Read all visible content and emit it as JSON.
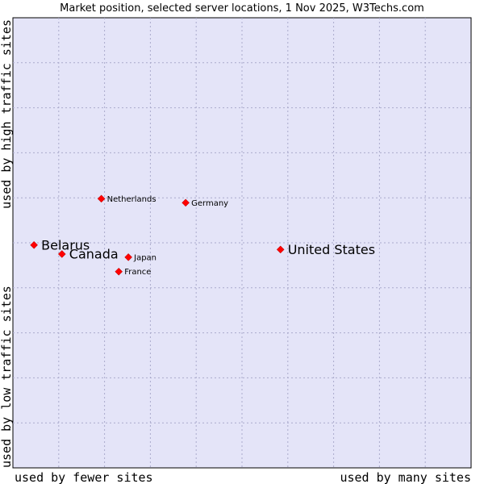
{
  "chart_data": {
    "type": "scatter",
    "title": "Market position, selected server locations, 1 Nov 2025, W3Techs.com",
    "xlabel_left": "used by fewer sites",
    "xlabel_right": "used by many sites",
    "ylabel_bottom": "used by low traffic sites",
    "ylabel_top": "used by high traffic sites",
    "x_range": [
      0,
      100
    ],
    "y_range": [
      0,
      100
    ],
    "grid": true,
    "colors": {
      "plot_background": "#e4e4f8",
      "grid": "#aaaacc",
      "marker": "#ff0000",
      "border": "#000000"
    },
    "points": [
      {
        "label": "Belarus",
        "x": 4.6,
        "y": 49.5,
        "label_size": "large"
      },
      {
        "label": "Canada",
        "x": 10.7,
        "y": 47.5,
        "label_size": "large"
      },
      {
        "label": "United States",
        "x": 58.4,
        "y": 48.5,
        "label_size": "large"
      },
      {
        "label": "Netherlands",
        "x": 19.3,
        "y": 59.8,
        "label_size": "small"
      },
      {
        "label": "Germany",
        "x": 37.7,
        "y": 58.9,
        "label_size": "small"
      },
      {
        "label": "Japan",
        "x": 25.2,
        "y": 46.8,
        "label_size": "small"
      },
      {
        "label": "France",
        "x": 23.1,
        "y": 43.6,
        "label_size": "small"
      }
    ]
  }
}
